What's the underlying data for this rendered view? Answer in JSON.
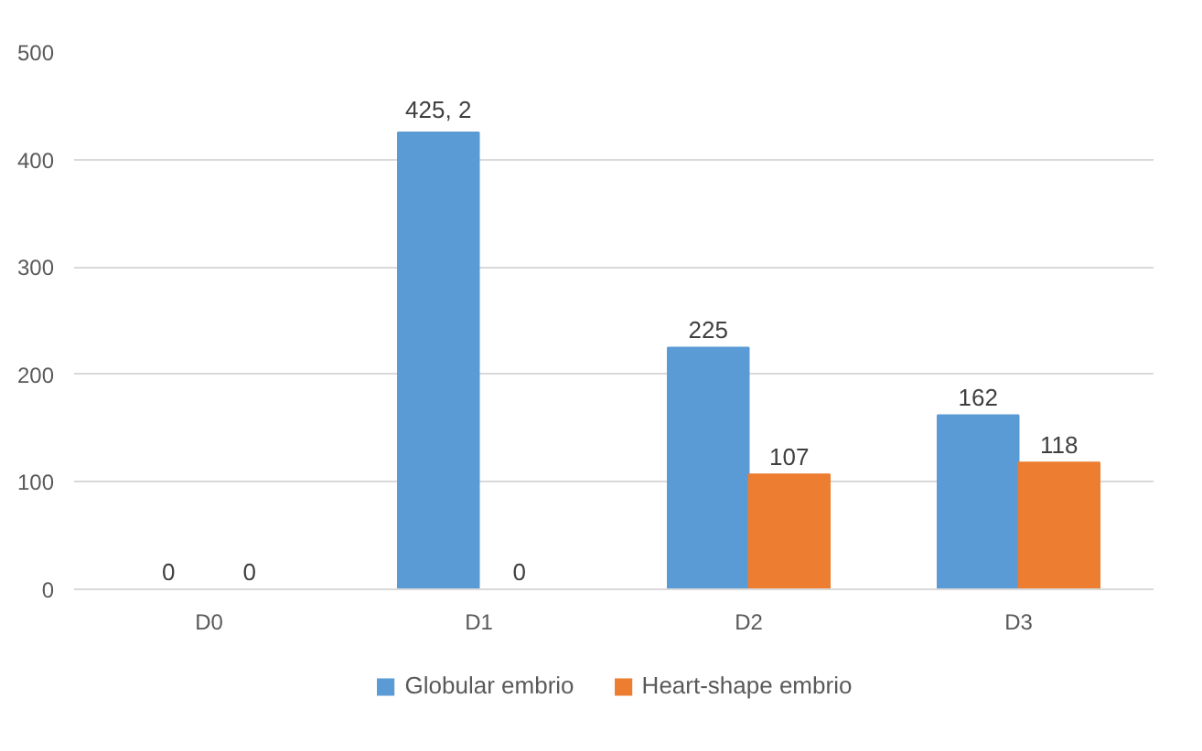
{
  "chart_data": {
    "type": "bar",
    "categories": [
      "D0",
      "D1",
      "D2",
      "D3"
    ],
    "series": [
      {
        "name": "Globular embrio",
        "color": "#5b9bd5",
        "values": [
          0,
          425.2,
          225,
          162
        ],
        "value_labels": [
          "0",
          "425, 2",
          "225",
          "162"
        ]
      },
      {
        "name": "Heart-shape embrio",
        "color": "#ed7d31",
        "values": [
          0,
          0,
          107,
          118
        ],
        "value_labels": [
          "0",
          "0",
          "107",
          "118"
        ]
      }
    ],
    "ylim": [
      0,
      500
    ],
    "yticks": [
      0,
      100,
      200,
      300,
      400,
      500
    ],
    "grid": "y",
    "legend": "bottom"
  }
}
